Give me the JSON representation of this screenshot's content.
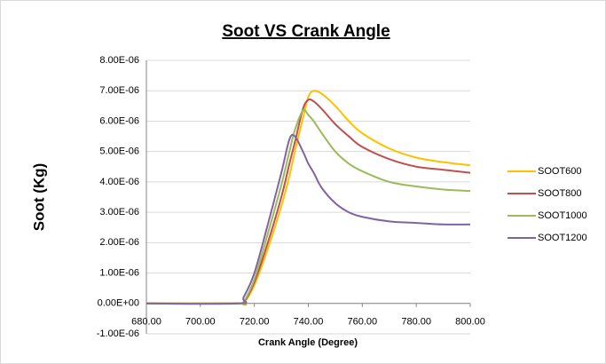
{
  "chart_data": {
    "type": "line",
    "title": "Soot VS Crank Angle",
    "xlabel": "Crank Angle (Degree)",
    "ylabel": "Soot (Kg)",
    "x": [
      680,
      714,
      716,
      720,
      725,
      730,
      733,
      735,
      738,
      740,
      742,
      745,
      750,
      755,
      760,
      770,
      780,
      790,
      800
    ],
    "series": [
      {
        "name": "SOOT600",
        "color": "#FFC000",
        "values": [
          0,
          0,
          0,
          6e-07,
          1.8e-06,
          3.2e-06,
          4.2e-06,
          5e-06,
          6.1e-06,
          6.8e-06,
          7e-06,
          6.9e-06,
          6.5e-06,
          6e-06,
          5.6e-06,
          5.1e-06,
          4.8e-06,
          4.65e-06,
          4.55e-06
        ]
      },
      {
        "name": "SOOT800",
        "color": "#C0504D",
        "values": [
          0,
          0,
          3e-08,
          7e-07,
          2e-06,
          3.5e-06,
          4.6e-06,
          5.3e-06,
          6.4e-06,
          6.7e-06,
          6.65e-06,
          6.4e-06,
          5.9e-06,
          5.5e-06,
          5.15e-06,
          4.75e-06,
          4.5e-06,
          4.4e-06,
          4.3e-06
        ]
      },
      {
        "name": "SOOT1000",
        "color": "#9BBB59",
        "values": [
          0,
          0,
          5e-08,
          8e-07,
          2.3e-06,
          3.9e-06,
          5e-06,
          5.7e-06,
          6.35e-06,
          6.2e-06,
          6e-06,
          5.6e-06,
          5e-06,
          4.6e-06,
          4.35e-06,
          4e-06,
          3.85e-06,
          3.75e-06,
          3.7e-06
        ]
      },
      {
        "name": "SOOT1200",
        "color": "#8064A2",
        "values": [
          0,
          0,
          2e-07,
          1e-06,
          2.6e-06,
          4.3e-06,
          5.4e-06,
          5.5e-06,
          5e-06,
          4.6e-06,
          4.3e-06,
          3.8e-06,
          3.3e-06,
          3e-06,
          2.85e-06,
          2.7e-06,
          2.65e-06,
          2.6e-06,
          2.6e-06
        ]
      }
    ],
    "xlim": [
      680,
      800
    ],
    "xticks": [
      {
        "value": 680,
        "label": "680.00"
      },
      {
        "value": 700,
        "label": "700.00"
      },
      {
        "value": 720,
        "label": "720.00"
      },
      {
        "value": 740,
        "label": "740.00"
      },
      {
        "value": 760,
        "label": "760.00"
      },
      {
        "value": 780,
        "label": "780.00"
      },
      {
        "value": 800,
        "label": "800.00"
      }
    ],
    "ylim": [
      -1e-06,
      8e-06
    ],
    "yticks": [
      {
        "value": -1e-06,
        "label": "-1.00E-06"
      },
      {
        "value": 0,
        "label": "0.00E+00"
      },
      {
        "value": 1e-06,
        "label": "1.00E-06"
      },
      {
        "value": 2e-06,
        "label": "2.00E-06"
      },
      {
        "value": 3e-06,
        "label": "3.00E-06"
      },
      {
        "value": 4e-06,
        "label": "4.00E-06"
      },
      {
        "value": 5e-06,
        "label": "5.00E-06"
      },
      {
        "value": 6e-06,
        "label": "6.00E-06"
      },
      {
        "value": 7e-06,
        "label": "7.00E-06"
      },
      {
        "value": 8e-06,
        "label": "8.00E-06"
      }
    ],
    "grid": true,
    "legend": "right"
  }
}
